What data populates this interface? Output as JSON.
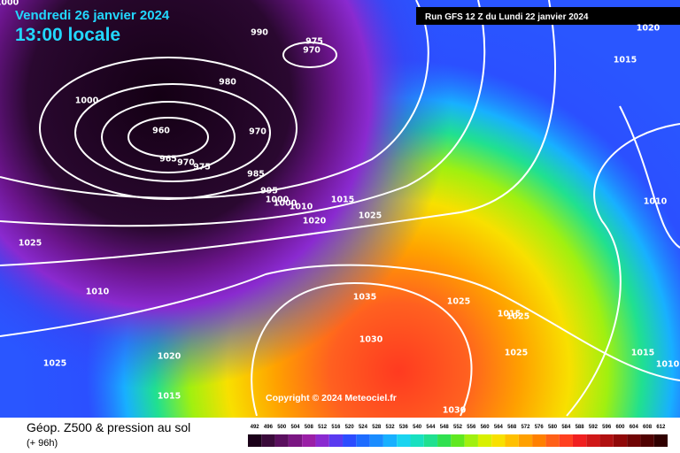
{
  "header": {
    "date": "Vendredi 26 janvier 2024",
    "time": "13:00 locale",
    "run": "Run GFS 12 Z du Lundi 22 janvier 2024"
  },
  "isobar_labels": [
    "1000",
    "990",
    "975",
    "970",
    "980",
    "1000",
    "960",
    "970",
    "965",
    "970",
    "975",
    "985",
    "995",
    "1000",
    "1000",
    "1010",
    "1015",
    "1025",
    "1020",
    "1025",
    "1010",
    "1035",
    "1030",
    "1025",
    "1015",
    "1025",
    "1025",
    "1020",
    "1025",
    "1015",
    "1030",
    "1020",
    "1015",
    "1010",
    "1015",
    "1010"
  ],
  "copyright": "Copyright © 2024 Meteociel.fr",
  "legend": {
    "title": "Géop. Z500 & pression au sol",
    "lead": "(+ 96h)",
    "scale": [
      492,
      496,
      500,
      504,
      508,
      512,
      516,
      520,
      524,
      528,
      532,
      536,
      540,
      544,
      548,
      552,
      556,
      560,
      564,
      568,
      572,
      576,
      580,
      584,
      588,
      592,
      596,
      600,
      604,
      608,
      612
    ],
    "colors": [
      "#1a0018",
      "#3a0a3a",
      "#5a0f5e",
      "#7a1682",
      "#9a1fa6",
      "#8a2ad0",
      "#5a3af0",
      "#2c4cff",
      "#1e6cff",
      "#1a8cff",
      "#18b0ff",
      "#1ad4f0",
      "#18e0c0",
      "#20e090",
      "#30e050",
      "#60e820",
      "#a0f010",
      "#d8f000",
      "#f8e000",
      "#ffc000",
      "#ffa000",
      "#ff8000",
      "#ff6018",
      "#ff4020",
      "#f02020",
      "#d01818",
      "#b01010",
      "#900808",
      "#700404",
      "#500202",
      "#300000"
    ]
  }
}
